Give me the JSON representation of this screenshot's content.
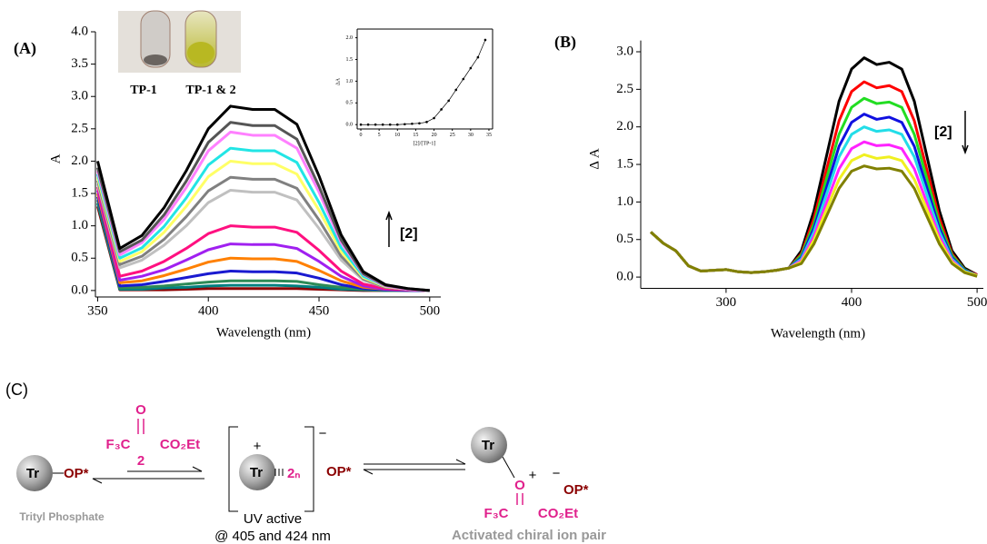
{
  "chart_data": [
    {
      "type": "line",
      "label": "(A)",
      "xlabel": "Wavelength (nm)",
      "ylabel": "A",
      "annotation": "[2]",
      "inset_labels": [
        "TP-1",
        "TP-1 & 2"
      ],
      "xlim": [
        349,
        505
      ],
      "ylim": [
        -0.1,
        4.0
      ],
      "xticks": [
        350,
        400,
        450,
        500
      ],
      "yticks": [
        {
          "value": 0,
          "label": "0.0"
        },
        {
          "value": 0.5,
          "label": "0.5"
        },
        {
          "value": 1,
          "label": "1.0"
        },
        {
          "value": 1.5,
          "label": "1.5"
        },
        {
          "value": 2,
          "label": "2.0"
        },
        {
          "value": 2.5,
          "label": "2.5"
        },
        {
          "value": 3,
          "label": "3.0"
        },
        {
          "value": 3.5,
          "label": "3.5"
        },
        {
          "value": 4,
          "label": "4.0"
        }
      ],
      "x": [
        350,
        360,
        370,
        380,
        390,
        400,
        410,
        420,
        430,
        440,
        450,
        460,
        470,
        480,
        490,
        500
      ],
      "series": [
        {
          "color": "#8b0000",
          "values": [
            1.3,
            0.01,
            0.01,
            0.01,
            0.02,
            0.03,
            0.03,
            0.03,
            0.03,
            0.03,
            0.02,
            0.01,
            0.0,
            0.0,
            0.0,
            0.0
          ]
        },
        {
          "color": "#008080",
          "values": [
            1.35,
            0.02,
            0.02,
            0.04,
            0.05,
            0.07,
            0.08,
            0.08,
            0.08,
            0.07,
            0.05,
            0.02,
            0.01,
            0.0,
            0.0,
            0.0
          ]
        },
        {
          "color": "#2e8b57",
          "values": [
            1.4,
            0.04,
            0.05,
            0.07,
            0.1,
            0.13,
            0.15,
            0.15,
            0.15,
            0.14,
            0.09,
            0.05,
            0.02,
            0.0,
            0.0,
            0.0
          ]
        },
        {
          "color": "#1a1ad0",
          "values": [
            1.45,
            0.07,
            0.09,
            0.14,
            0.2,
            0.26,
            0.3,
            0.29,
            0.29,
            0.27,
            0.19,
            0.09,
            0.03,
            0.01,
            0.0,
            0.0
          ]
        },
        {
          "color": "#ff8000",
          "values": [
            1.5,
            0.12,
            0.15,
            0.23,
            0.33,
            0.44,
            0.5,
            0.49,
            0.49,
            0.45,
            0.31,
            0.15,
            0.05,
            0.02,
            0.01,
            0.0
          ]
        },
        {
          "color": "#a020f0",
          "values": [
            1.55,
            0.16,
            0.22,
            0.32,
            0.47,
            0.63,
            0.72,
            0.71,
            0.71,
            0.65,
            0.45,
            0.22,
            0.07,
            0.02,
            0.01,
            0.0
          ]
        },
        {
          "color": "#ff1080",
          "values": [
            1.6,
            0.22,
            0.3,
            0.45,
            0.65,
            0.88,
            1.0,
            0.98,
            0.98,
            0.9,
            0.62,
            0.3,
            0.1,
            0.03,
            0.01,
            0.0
          ]
        },
        {
          "color": "#c0c0c0",
          "values": [
            1.65,
            0.35,
            0.47,
            0.7,
            1.0,
            1.36,
            1.55,
            1.52,
            1.52,
            1.4,
            0.96,
            0.47,
            0.16,
            0.05,
            0.02,
            0.0
          ]
        },
        {
          "color": "#808080",
          "values": [
            1.7,
            0.4,
            0.53,
            0.79,
            1.14,
            1.54,
            1.75,
            1.72,
            1.72,
            1.58,
            1.09,
            0.53,
            0.18,
            0.05,
            0.02,
            0.0
          ]
        },
        {
          "color": "#ffff66",
          "values": [
            1.75,
            0.45,
            0.6,
            0.9,
            1.3,
            1.76,
            2.0,
            1.96,
            1.96,
            1.8,
            1.24,
            0.6,
            0.2,
            0.06,
            0.02,
            0.0
          ]
        },
        {
          "color": "#22e5e5",
          "values": [
            1.8,
            0.5,
            0.66,
            0.99,
            1.43,
            1.94,
            2.2,
            2.16,
            2.16,
            1.98,
            1.36,
            0.66,
            0.22,
            0.07,
            0.02,
            0.0
          ]
        },
        {
          "color": "#ff80ff",
          "values": [
            1.85,
            0.55,
            0.74,
            1.1,
            1.59,
            2.16,
            2.45,
            2.4,
            2.4,
            2.2,
            1.52,
            0.74,
            0.25,
            0.07,
            0.02,
            0.0
          ]
        },
        {
          "color": "#555555",
          "values": [
            1.9,
            0.6,
            0.78,
            1.17,
            1.69,
            2.29,
            2.6,
            2.55,
            2.55,
            2.34,
            1.61,
            0.78,
            0.26,
            0.08,
            0.03,
            0.0
          ]
        },
        {
          "color": "#000000",
          "values": [
            2.0,
            0.65,
            0.85,
            1.28,
            1.85,
            2.5,
            2.85,
            2.8,
            2.8,
            2.57,
            1.77,
            0.86,
            0.29,
            0.09,
            0.03,
            0.0
          ]
        }
      ]
    },
    {
      "type": "line",
      "markers": true,
      "frame": true,
      "xlabel": "[2]/[TP-1]",
      "ylabel": "ΔA",
      "xlim": [
        -1,
        36
      ],
      "ylim": [
        -0.1,
        2.2
      ],
      "xticks": [
        0,
        5,
        10,
        15,
        20,
        25,
        30,
        35
      ],
      "yticks": [
        {
          "value": 0,
          "label": "0.0"
        },
        {
          "value": 0.5,
          "label": "0.5"
        },
        {
          "value": 1,
          "label": "1.0"
        },
        {
          "value": 1.5,
          "label": "1.5"
        },
        {
          "value": 2,
          "label": "2.0"
        }
      ],
      "x": [
        0,
        2,
        4,
        6,
        8,
        10,
        12,
        14,
        16,
        18,
        20,
        22,
        24,
        26,
        28,
        30,
        32,
        34
      ],
      "series": [
        {
          "color": "#000000",
          "values": [
            0,
            0,
            0,
            0,
            0,
            0,
            0.01,
            0.02,
            0.03,
            0.06,
            0.15,
            0.35,
            0.55,
            0.8,
            1.05,
            1.3,
            1.55,
            1.95
          ]
        }
      ]
    },
    {
      "type": "line",
      "label": "(B)",
      "xlabel": "Wavelength (nm)",
      "ylabel": "Δ A",
      "annotation": "[2]",
      "xlim": [
        232,
        505
      ],
      "ylim": [
        -0.15,
        3.15
      ],
      "xticks": [
        300,
        400,
        500
      ],
      "yticks": [
        {
          "value": 0,
          "label": "0.0"
        },
        {
          "value": 0.5,
          "label": "0.5"
        },
        {
          "value": 1,
          "label": "1.0"
        },
        {
          "value": 1.5,
          "label": "1.5"
        },
        {
          "value": 2,
          "label": "2.0"
        },
        {
          "value": 2.5,
          "label": "2.5"
        },
        {
          "value": 3,
          "label": "3.0"
        }
      ],
      "x": [
        240,
        250,
        260,
        270,
        280,
        290,
        300,
        310,
        320,
        330,
        340,
        350,
        360,
        370,
        380,
        390,
        400,
        410,
        420,
        430,
        440,
        450,
        460,
        470,
        480,
        490,
        500
      ],
      "series": [
        {
          "color": "#000000",
          "values": [
            0.6,
            0.45,
            0.35,
            0.15,
            0.08,
            0.09,
            0.1,
            0.07,
            0.06,
            0.07,
            0.09,
            0.12,
            0.35,
            0.88,
            1.61,
            2.34,
            2.77,
            2.92,
            2.83,
            2.86,
            2.77,
            2.34,
            1.61,
            0.88,
            0.35,
            0.12,
            0.03
          ]
        },
        {
          "color": "#ff0000",
          "values": [
            0.6,
            0.45,
            0.35,
            0.15,
            0.08,
            0.09,
            0.1,
            0.07,
            0.06,
            0.07,
            0.09,
            0.12,
            0.31,
            0.78,
            1.43,
            2.08,
            2.47,
            2.6,
            2.52,
            2.55,
            2.47,
            2.08,
            1.43,
            0.78,
            0.31,
            0.1,
            0.03
          ]
        },
        {
          "color": "#22dd22",
          "values": [
            0.6,
            0.45,
            0.35,
            0.15,
            0.08,
            0.09,
            0.1,
            0.07,
            0.06,
            0.07,
            0.09,
            0.12,
            0.29,
            0.71,
            1.31,
            1.9,
            2.26,
            2.38,
            2.31,
            2.33,
            2.26,
            1.9,
            1.31,
            0.71,
            0.29,
            0.1,
            0.02
          ]
        },
        {
          "color": "#1010e0",
          "values": [
            0.6,
            0.45,
            0.35,
            0.15,
            0.08,
            0.09,
            0.1,
            0.07,
            0.06,
            0.07,
            0.09,
            0.12,
            0.26,
            0.65,
            1.19,
            1.74,
            2.06,
            2.17,
            2.1,
            2.13,
            2.06,
            1.74,
            1.19,
            0.65,
            0.26,
            0.09,
            0.02
          ]
        },
        {
          "color": "#22dde8",
          "values": [
            0.6,
            0.45,
            0.35,
            0.15,
            0.08,
            0.09,
            0.1,
            0.07,
            0.06,
            0.07,
            0.09,
            0.12,
            0.24,
            0.6,
            1.1,
            1.6,
            1.9,
            2.0,
            1.94,
            1.96,
            1.9,
            1.6,
            1.1,
            0.6,
            0.24,
            0.08,
            0.02
          ]
        },
        {
          "color": "#ff22ff",
          "values": [
            0.6,
            0.45,
            0.35,
            0.15,
            0.08,
            0.09,
            0.1,
            0.07,
            0.06,
            0.07,
            0.09,
            0.12,
            0.22,
            0.54,
            0.99,
            1.44,
            1.71,
            1.8,
            1.75,
            1.76,
            1.71,
            1.44,
            0.99,
            0.54,
            0.22,
            0.07,
            0.02
          ]
        },
        {
          "color": "#f0f020",
          "values": [
            0.6,
            0.45,
            0.35,
            0.15,
            0.08,
            0.09,
            0.1,
            0.07,
            0.06,
            0.07,
            0.09,
            0.12,
            0.2,
            0.49,
            0.9,
            1.3,
            1.55,
            1.63,
            1.58,
            1.6,
            1.55,
            1.3,
            0.9,
            0.49,
            0.2,
            0.07,
            0.02
          ]
        },
        {
          "color": "#808000",
          "values": [
            0.6,
            0.45,
            0.35,
            0.15,
            0.08,
            0.09,
            0.1,
            0.07,
            0.06,
            0.07,
            0.09,
            0.12,
            0.18,
            0.44,
            0.81,
            1.18,
            1.41,
            1.48,
            1.44,
            1.45,
            1.41,
            1.18,
            0.81,
            0.44,
            0.18,
            0.06,
            0.01
          ]
        }
      ]
    }
  ],
  "scheme": {
    "label": "(C)",
    "start": {
      "tr": "Tr",
      "op": "OP*",
      "caption": "Trityl Phosphate"
    },
    "reagent": {
      "o": "O",
      "f3c": "F₃C",
      "co2et": "CO₂Et",
      "number": "2"
    },
    "middle": {
      "tr": "Tr",
      "charge": "+",
      "ligand": "2ₙ",
      "anion_charge": "−",
      "op": "OP*",
      "caption": [
        "UV active",
        "@ 405 and 424 nm"
      ]
    },
    "end": {
      "tr": "Tr",
      "o": "O",
      "charge": "+",
      "anion_charge": "−",
      "op": "OP*",
      "f3c": "F₃C",
      "co2et": "CO₂Et",
      "caption": "Activated chiral ion pair"
    }
  }
}
